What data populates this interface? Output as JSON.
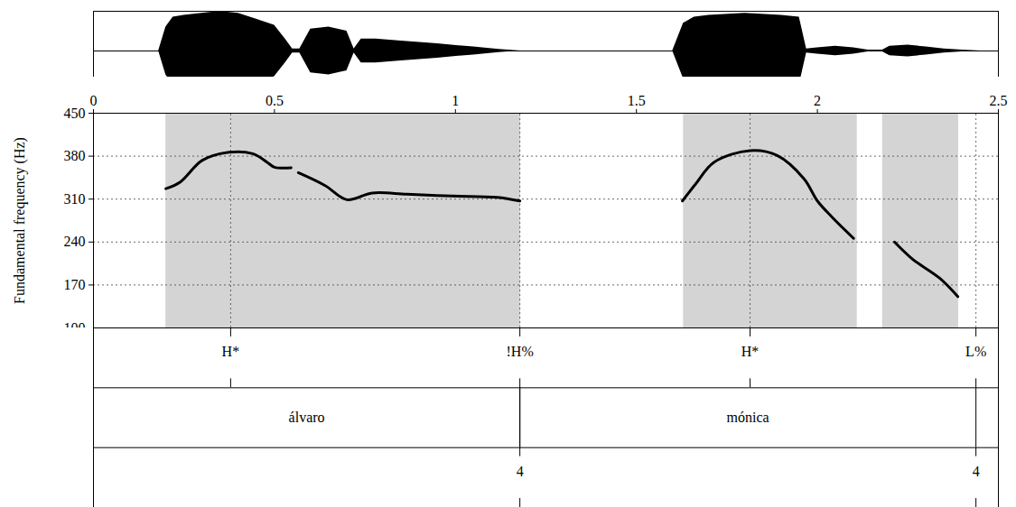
{
  "chart_data": {
    "type": "line",
    "y_label": "Fundamental frequency (Hz)",
    "xlim": [
      0,
      2.5
    ],
    "xticks": [
      0,
      0.5,
      1,
      1.5,
      2,
      2.5
    ],
    "ylim": [
      100,
      450
    ],
    "yticks": [
      100,
      170,
      240,
      310,
      380,
      450
    ],
    "grid": true,
    "color": "#000000",
    "x": [
      0.2,
      0.24,
      0.3,
      0.37,
      0.44,
      0.48,
      0.5,
      0.546,
      0.556,
      0.566,
      0.64,
      0.7,
      0.77,
      0.866,
      0.99,
      1.115,
      1.178,
      1.4,
      1.627,
      1.664,
      1.714,
      1.814,
      1.889,
      1.963,
      2.0,
      2.04,
      2.1,
      2.16,
      2.213,
      2.263,
      2.338,
      2.388
    ],
    "values": [
      327,
      338,
      373,
      386,
      384,
      370,
      362,
      361,
      null,
      353,
      332,
      309,
      320,
      318,
      315,
      313,
      307,
      null,
      307,
      335,
      370,
      389,
      381,
      343,
      307,
      281,
      246,
      null,
      240,
      212,
      181,
      151
    ],
    "waveform": {
      "ylim": [
        -1,
        1
      ],
      "x": [
        0.18,
        0.2,
        0.22,
        0.25,
        0.3,
        0.35,
        0.4,
        0.45,
        0.5,
        0.53,
        0.55,
        0.57,
        0.6,
        0.65,
        0.7,
        0.72,
        0.74,
        0.78,
        0.85,
        0.95,
        1.05,
        1.12,
        1.18,
        1.6,
        1.63,
        1.66,
        1.7,
        1.8,
        1.9,
        1.95,
        1.97,
        2.0,
        2.05,
        2.1,
        2.14,
        2.18,
        2.2,
        2.25,
        2.3,
        2.35,
        2.4,
        2.45
      ],
      "amplitude": [
        0,
        0.6,
        0.85,
        0.9,
        0.95,
        1.0,
        0.95,
        0.8,
        0.65,
        0.3,
        0.05,
        0.05,
        0.55,
        0.6,
        0.5,
        0.05,
        0.3,
        0.3,
        0.25,
        0.18,
        0.1,
        0.04,
        0,
        0,
        0.7,
        0.85,
        0.9,
        0.95,
        0.9,
        0.85,
        0.05,
        0.08,
        0.12,
        0.08,
        0.02,
        0.02,
        0.12,
        0.15,
        0.1,
        0.05,
        0.02,
        0
      ]
    },
    "spectrogram_regions": [
      [
        0.2,
        1.18
      ],
      [
        1.63,
        2.11
      ],
      [
        2.18,
        2.39
      ]
    ],
    "tiers": [
      {
        "points": [
          {
            "time": 0.379,
            "label": "H*"
          },
          {
            "time": 1.178,
            "label": "!H%"
          },
          {
            "time": 1.814,
            "label": "H*"
          },
          {
            "time": 2.438,
            "label": "L%"
          }
        ]
      },
      {
        "intervals": [
          {
            "start": 0,
            "end": 1.178,
            "label": "álvaro"
          },
          {
            "start": 1.178,
            "end": 2.438,
            "label": "mónica"
          }
        ]
      },
      {
        "points": [
          {
            "time": 1.178,
            "label": "4"
          },
          {
            "time": 2.438,
            "label": "4"
          }
        ]
      }
    ]
  }
}
